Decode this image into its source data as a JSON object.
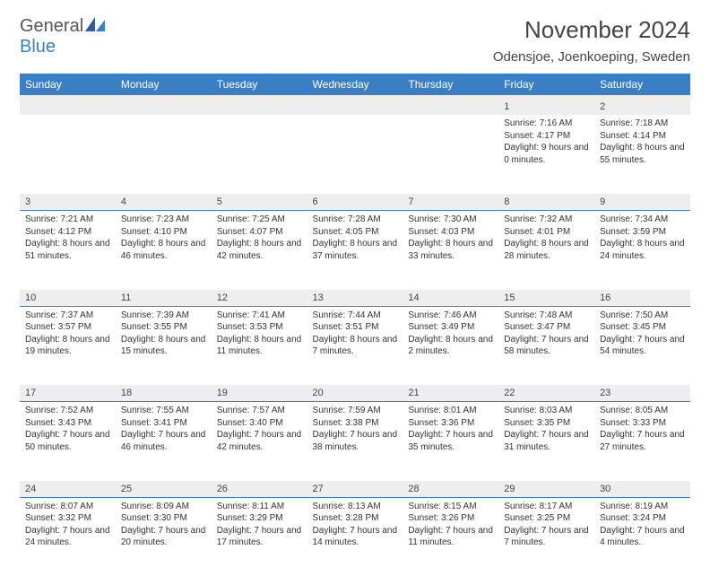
{
  "brand": {
    "part1": "General",
    "part2": "Blue"
  },
  "title": "November 2024",
  "location": "Odensjoe, Joenkoeping, Sweden",
  "colors": {
    "header_bg": "#3a7fc4",
    "header_text": "#ffffff",
    "daynum_bg": "#eeeeee",
    "text": "#333333",
    "rule": "#3a7fc4"
  },
  "day_headers": [
    "Sunday",
    "Monday",
    "Tuesday",
    "Wednesday",
    "Thursday",
    "Friday",
    "Saturday"
  ],
  "weeks": [
    [
      null,
      null,
      null,
      null,
      null,
      {
        "n": "1",
        "sunrise": "7:16 AM",
        "sunset": "4:17 PM",
        "day_h": 9,
        "day_m": 0
      },
      {
        "n": "2",
        "sunrise": "7:18 AM",
        "sunset": "4:14 PM",
        "day_h": 8,
        "day_m": 55
      }
    ],
    [
      {
        "n": "3",
        "sunrise": "7:21 AM",
        "sunset": "4:12 PM",
        "day_h": 8,
        "day_m": 51
      },
      {
        "n": "4",
        "sunrise": "7:23 AM",
        "sunset": "4:10 PM",
        "day_h": 8,
        "day_m": 46
      },
      {
        "n": "5",
        "sunrise": "7:25 AM",
        "sunset": "4:07 PM",
        "day_h": 8,
        "day_m": 42
      },
      {
        "n": "6",
        "sunrise": "7:28 AM",
        "sunset": "4:05 PM",
        "day_h": 8,
        "day_m": 37
      },
      {
        "n": "7",
        "sunrise": "7:30 AM",
        "sunset": "4:03 PM",
        "day_h": 8,
        "day_m": 33
      },
      {
        "n": "8",
        "sunrise": "7:32 AM",
        "sunset": "4:01 PM",
        "day_h": 8,
        "day_m": 28
      },
      {
        "n": "9",
        "sunrise": "7:34 AM",
        "sunset": "3:59 PM",
        "day_h": 8,
        "day_m": 24
      }
    ],
    [
      {
        "n": "10",
        "sunrise": "7:37 AM",
        "sunset": "3:57 PM",
        "day_h": 8,
        "day_m": 19
      },
      {
        "n": "11",
        "sunrise": "7:39 AM",
        "sunset": "3:55 PM",
        "day_h": 8,
        "day_m": 15
      },
      {
        "n": "12",
        "sunrise": "7:41 AM",
        "sunset": "3:53 PM",
        "day_h": 8,
        "day_m": 11
      },
      {
        "n": "13",
        "sunrise": "7:44 AM",
        "sunset": "3:51 PM",
        "day_h": 8,
        "day_m": 7
      },
      {
        "n": "14",
        "sunrise": "7:46 AM",
        "sunset": "3:49 PM",
        "day_h": 8,
        "day_m": 2
      },
      {
        "n": "15",
        "sunrise": "7:48 AM",
        "sunset": "3:47 PM",
        "day_h": 7,
        "day_m": 58
      },
      {
        "n": "16",
        "sunrise": "7:50 AM",
        "sunset": "3:45 PM",
        "day_h": 7,
        "day_m": 54
      }
    ],
    [
      {
        "n": "17",
        "sunrise": "7:52 AM",
        "sunset": "3:43 PM",
        "day_h": 7,
        "day_m": 50
      },
      {
        "n": "18",
        "sunrise": "7:55 AM",
        "sunset": "3:41 PM",
        "day_h": 7,
        "day_m": 46
      },
      {
        "n": "19",
        "sunrise": "7:57 AM",
        "sunset": "3:40 PM",
        "day_h": 7,
        "day_m": 42
      },
      {
        "n": "20",
        "sunrise": "7:59 AM",
        "sunset": "3:38 PM",
        "day_h": 7,
        "day_m": 38
      },
      {
        "n": "21",
        "sunrise": "8:01 AM",
        "sunset": "3:36 PM",
        "day_h": 7,
        "day_m": 35
      },
      {
        "n": "22",
        "sunrise": "8:03 AM",
        "sunset": "3:35 PM",
        "day_h": 7,
        "day_m": 31
      },
      {
        "n": "23",
        "sunrise": "8:05 AM",
        "sunset": "3:33 PM",
        "day_h": 7,
        "day_m": 27
      }
    ],
    [
      {
        "n": "24",
        "sunrise": "8:07 AM",
        "sunset": "3:32 PM",
        "day_h": 7,
        "day_m": 24
      },
      {
        "n": "25",
        "sunrise": "8:09 AM",
        "sunset": "3:30 PM",
        "day_h": 7,
        "day_m": 20
      },
      {
        "n": "26",
        "sunrise": "8:11 AM",
        "sunset": "3:29 PM",
        "day_h": 7,
        "day_m": 17
      },
      {
        "n": "27",
        "sunrise": "8:13 AM",
        "sunset": "3:28 PM",
        "day_h": 7,
        "day_m": 14
      },
      {
        "n": "28",
        "sunrise": "8:15 AM",
        "sunset": "3:26 PM",
        "day_h": 7,
        "day_m": 11
      },
      {
        "n": "29",
        "sunrise": "8:17 AM",
        "sunset": "3:25 PM",
        "day_h": 7,
        "day_m": 7
      },
      {
        "n": "30",
        "sunrise": "8:19 AM",
        "sunset": "3:24 PM",
        "day_h": 7,
        "day_m": 4
      }
    ]
  ]
}
